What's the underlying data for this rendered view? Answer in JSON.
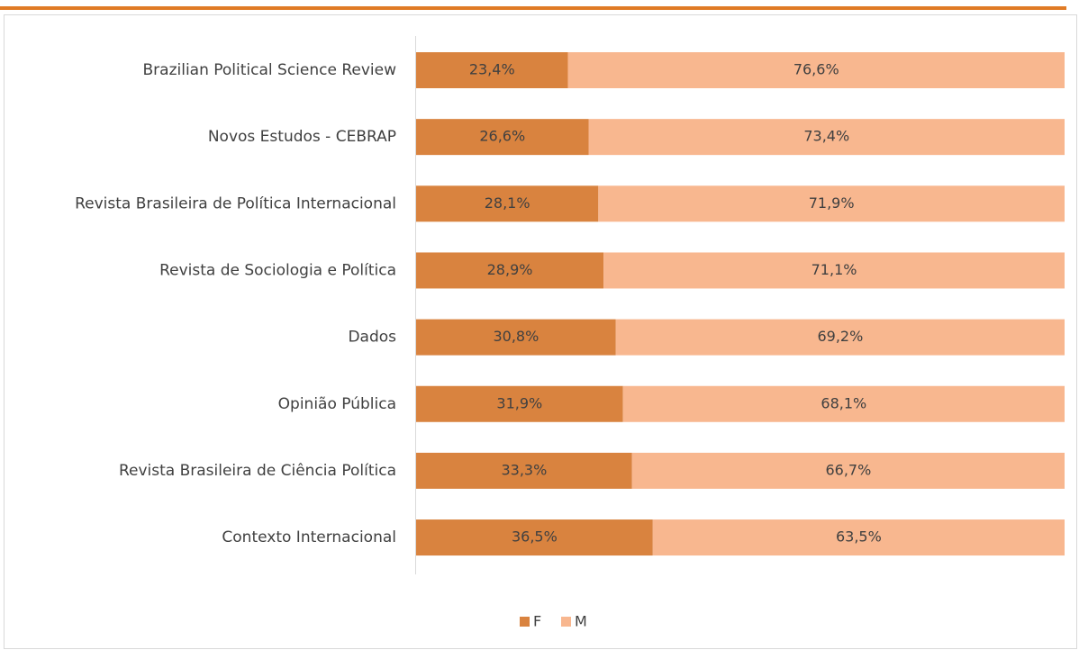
{
  "chart_data": {
    "type": "stacked-barh",
    "categories": [
      "Brazilian Political Science Review",
      "Novos Estudos - CEBRAP",
      "Revista Brasileira de Política Internacional",
      "Revista de Sociologia e Política",
      "Dados",
      "Opinião Pública",
      "Revista Brasileira de Ciência Política",
      "Contexto Internacional"
    ],
    "series": [
      {
        "name": "F",
        "color": "#d9833f",
        "values": [
          23.4,
          26.6,
          28.1,
          28.9,
          30.8,
          31.9,
          33.3,
          36.5
        ],
        "value_labels": [
          "23,4%",
          "26,6%",
          "28,1%",
          "28,9%",
          "30,8%",
          "31,9%",
          "33,3%",
          "36,5%"
        ]
      },
      {
        "name": "M",
        "color": "#f8b78f",
        "values": [
          76.6,
          73.4,
          71.9,
          71.1,
          69.2,
          68.1,
          66.7,
          63.5
        ],
        "value_labels": [
          "76,6%",
          "73,4%",
          "71,9%",
          "71,1%",
          "69,2%",
          "68,1%",
          "66,7%",
          "63,5%"
        ]
      }
    ],
    "legend": "bottom"
  }
}
